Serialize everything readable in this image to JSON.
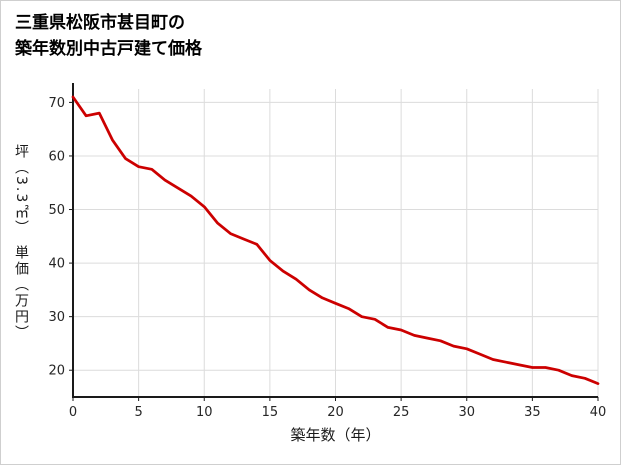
{
  "title": {
    "line1": "三重県松阪市甚目町の",
    "line2": "築年数別中古戸建て価格"
  },
  "chart_data": {
    "type": "line",
    "title": "三重県松阪市甚目町の築年数別中古戸建て価格",
    "xlabel": "築年数（年）",
    "ylabel": "坪（3.3㎡）　単価（万円）",
    "x": [
      0,
      1,
      2,
      3,
      4,
      5,
      6,
      7,
      8,
      9,
      10,
      11,
      12,
      13,
      14,
      15,
      16,
      17,
      18,
      19,
      20,
      21,
      22,
      23,
      24,
      25,
      26,
      27,
      28,
      29,
      30,
      31,
      32,
      33,
      34,
      35,
      36,
      37,
      38,
      39,
      40
    ],
    "values": [
      71,
      67.5,
      68,
      63,
      59.5,
      58,
      57.5,
      55.5,
      54,
      52.5,
      50.5,
      47.5,
      45.5,
      44.5,
      43.5,
      40.5,
      38.5,
      37,
      35,
      33.5,
      32.5,
      31.5,
      30,
      29.5,
      28,
      27.5,
      26.5,
      26,
      25.5,
      24.5,
      24,
      23,
      22,
      21.5,
      21,
      20.5,
      20.5,
      20,
      19,
      18.5,
      17.5
    ],
    "xlim": [
      0,
      40
    ],
    "ylim": [
      15,
      72.5
    ],
    "x_ticks": [
      0,
      5,
      10,
      15,
      20,
      25,
      30,
      35,
      40
    ],
    "y_ticks": [
      20,
      30,
      40,
      50,
      60,
      70
    ],
    "grid": true,
    "legend": false,
    "line_color": "#cc0000",
    "axis_color": "#1a1a1a",
    "grid_color": "#dcdcdc",
    "tick_label_color": "#262626"
  }
}
